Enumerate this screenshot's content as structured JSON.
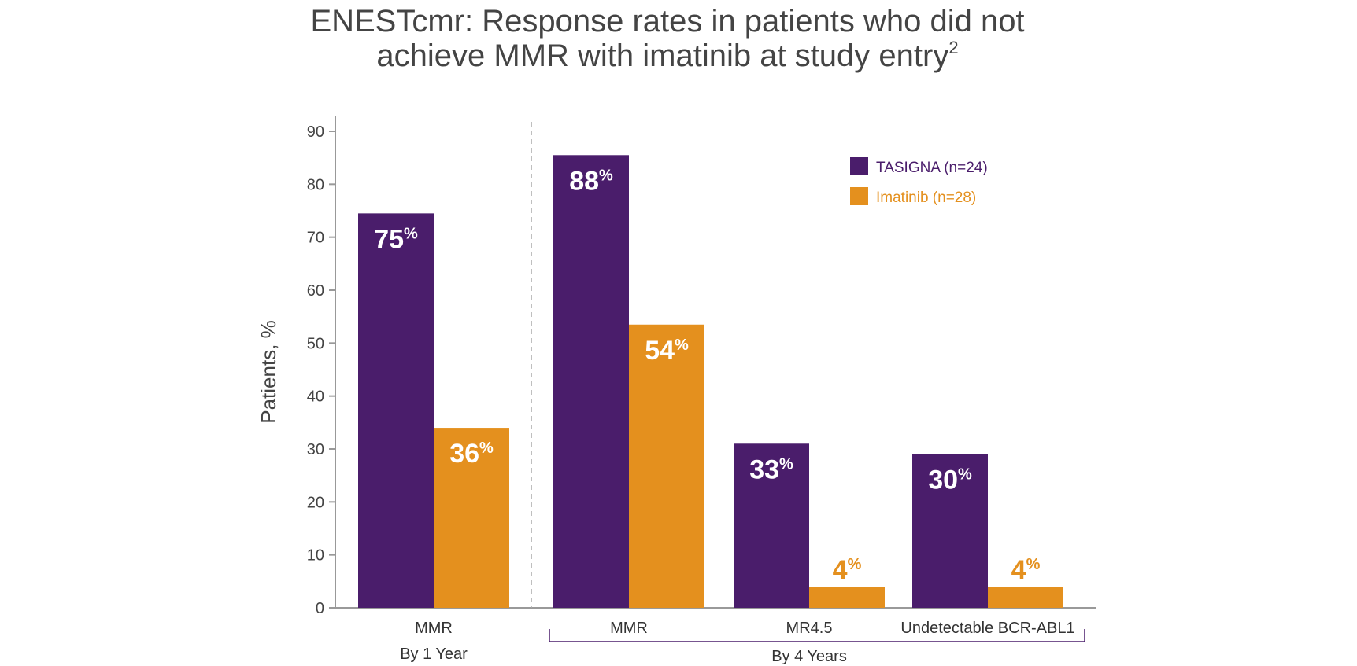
{
  "title_line1": "ENESTcmr: Response rates in patients who did not",
  "title_line2": "achieve MMR with imatinib at study entry",
  "title_superscript": "2",
  "chart_data": {
    "type": "bar",
    "title": "ENESTcmr: Response rates in patients who did not achieve MMR with imatinib at study entry",
    "ylabel": "Patients, %",
    "xlabel": "",
    "ylim": [
      0,
      90
    ],
    "yticks": [
      0,
      10,
      20,
      30,
      40,
      50,
      60,
      70,
      80,
      90
    ],
    "grid": false,
    "legend_position": "top-right",
    "categories": [
      "MMR",
      "MMR",
      "MR4.5",
      "Undetectable BCR-ABL1"
    ],
    "groups": [
      {
        "label": "By 1 Year",
        "categories": [
          0
        ]
      },
      {
        "label": "By 4 Years",
        "categories": [
          1,
          2,
          3
        ]
      }
    ],
    "series": [
      {
        "name": "TASIGNA (n=24)",
        "color": "#4a1d6b",
        "values": [
          75,
          88,
          33,
          30
        ],
        "bar_heights": [
          74.5,
          85.5,
          31,
          29
        ],
        "label_inside": [
          true,
          true,
          true,
          true
        ]
      },
      {
        "name": "Imatinib (n=28)",
        "color": "#e4901e",
        "values": [
          36,
          54,
          4,
          4
        ],
        "bar_heights": [
          34,
          53.5,
          4,
          4
        ],
        "label_inside": [
          true,
          true,
          false,
          false
        ]
      }
    ],
    "value_suffix": "%"
  }
}
